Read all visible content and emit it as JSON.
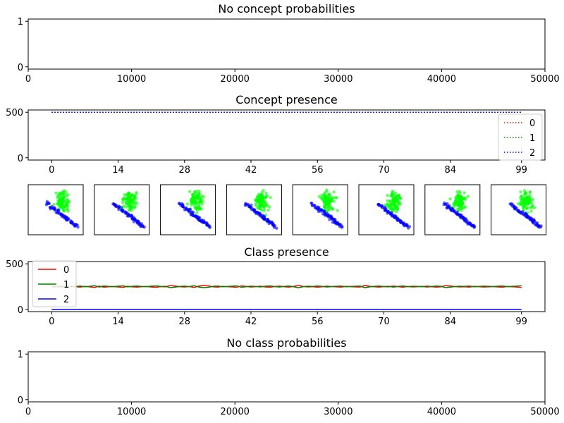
{
  "chart_data": [
    {
      "id": "top",
      "type": "line",
      "title": "No concept probabilities",
      "xlim": [
        0,
        50000
      ],
      "ylim": [
        -0.05,
        1.05
      ],
      "xticks": [
        "0",
        "10000",
        "20000",
        "30000",
        "40000",
        "50000"
      ],
      "xtick_values": [
        0,
        10000,
        20000,
        30000,
        40000,
        50000
      ],
      "yticks": [
        "0",
        "1"
      ],
      "ytick_values": [
        0,
        1
      ],
      "series": []
    },
    {
      "id": "concept",
      "type": "line",
      "title": "Concept presence",
      "xlim": [
        -4.95,
        103.95
      ],
      "ylim": [
        -25,
        525
      ],
      "xticks": [
        "0",
        "14",
        "28",
        "42",
        "56",
        "70",
        "84",
        "99"
      ],
      "xtick_values": [
        0,
        14,
        28,
        42,
        56,
        70,
        84,
        99
      ],
      "yticks": [
        "0",
        "500"
      ],
      "ytick_values": [
        0,
        500
      ],
      "legend": "right",
      "series": [
        {
          "name": "0",
          "color": "#ff0000",
          "style": "dotted",
          "constant": 500
        },
        {
          "name": "1",
          "color": "#008000",
          "style": "dotted",
          "constant": 500
        },
        {
          "name": "2",
          "color": "#0000ff",
          "style": "dotted",
          "constant": 500
        }
      ]
    },
    {
      "id": "thumbs",
      "type": "scatter",
      "count": 8,
      "cluster_colors": [
        "#00ff00",
        "#0000ff"
      ]
    },
    {
      "id": "class",
      "type": "line",
      "title": "Class presence",
      "xlim": [
        -4.95,
        103.95
      ],
      "ylim": [
        -25,
        525
      ],
      "xticks": [
        "0",
        "14",
        "28",
        "42",
        "56",
        "70",
        "84",
        "99"
      ],
      "xtick_values": [
        0,
        14,
        28,
        42,
        56,
        70,
        84,
        99
      ],
      "yticks": [
        "0",
        "500"
      ],
      "ytick_values": [
        0,
        500
      ],
      "legend": "upper-left",
      "series": [
        {
          "name": "0",
          "color": "#ff0000",
          "style": "solid",
          "values": [
            245,
            248,
            242,
            251,
            246,
            249,
            244,
            252,
            247,
            240,
            255,
            243,
            248,
            250,
            246,
            241,
            253,
            247,
            244,
            249,
            251,
            245,
            242,
            250,
            247,
            262,
            256,
            249,
            245,
            251,
            240,
            255,
            262,
            258,
            247,
            244,
            252,
            249,
            246,
            242,
            258,
            251,
            245,
            249,
            254,
            246,
            243,
            250,
            255,
            248,
            244,
            252,
            262,
            251,
            246,
            249,
            243,
            248,
            255,
            250,
            247,
            244,
            252,
            249,
            246,
            245,
            262,
            253,
            248,
            244,
            250,
            247,
            256,
            249,
            243,
            251,
            246,
            248,
            252,
            245,
            249,
            244,
            247,
            261,
            256,
            250,
            246,
            248,
            244,
            252,
            249,
            245,
            247,
            250,
            246,
            243,
            251,
            248,
            245,
            240
          ]
        },
        {
          "name": "1",
          "color": "#008000",
          "style": "solid",
          "values": [
            255,
            252,
            258,
            249,
            254,
            251,
            256,
            248,
            253,
            260,
            245,
            257,
            252,
            250,
            254,
            259,
            247,
            253,
            256,
            251,
            249,
            255,
            258,
            250,
            253,
            238,
            244,
            251,
            255,
            249,
            260,
            245,
            238,
            242,
            253,
            256,
            248,
            251,
            254,
            258,
            242,
            249,
            255,
            251,
            246,
            254,
            257,
            250,
            245,
            252,
            256,
            248,
            238,
            249,
            254,
            251,
            257,
            252,
            245,
            250,
            253,
            256,
            248,
            251,
            254,
            255,
            238,
            247,
            252,
            256,
            250,
            253,
            244,
            251,
            257,
            249,
            254,
            252,
            248,
            255,
            251,
            256,
            253,
            239,
            244,
            250,
            254,
            252,
            256,
            248,
            251,
            255,
            253,
            250,
            254,
            257,
            249,
            252,
            255,
            260
          ]
        },
        {
          "name": "2",
          "color": "#0000ff",
          "style": "solid",
          "constant": 0
        }
      ]
    },
    {
      "id": "bottom",
      "type": "line",
      "title": "No class probabilities",
      "xlim": [
        0,
        50000
      ],
      "ylim": [
        -0.05,
        1.05
      ],
      "xticks": [
        "0",
        "10000",
        "20000",
        "30000",
        "40000",
        "50000"
      ],
      "xtick_values": [
        0,
        10000,
        20000,
        30000,
        40000,
        50000
      ],
      "yticks": [
        "0",
        "1"
      ],
      "ytick_values": [
        0,
        1
      ],
      "series": []
    }
  ]
}
